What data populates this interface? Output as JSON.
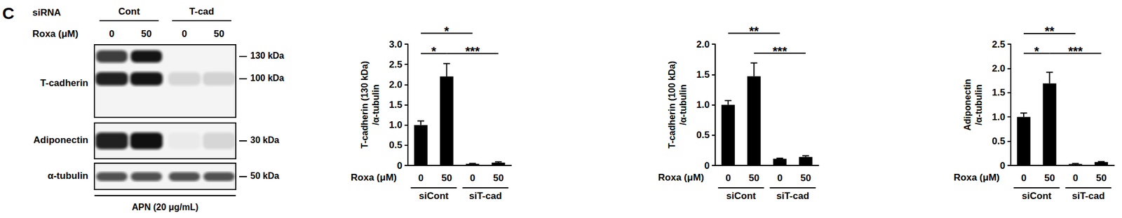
{
  "panel_label": "C",
  "blot": {
    "row_headers": [
      "siRNA",
      "Roxa (μM)"
    ],
    "sirna_groups": [
      "Cont",
      "T-cad"
    ],
    "roxa": [
      0,
      50,
      0,
      50
    ],
    "bands": [
      {
        "label": "T-cadherin",
        "markers": [
          "130 kDa",
          "100 kDa"
        ]
      },
      {
        "label": "Adiponectin",
        "markers": [
          "30 kDa"
        ]
      },
      {
        "label": "α-tubulin",
        "markers": [
          "50 kDa"
        ]
      }
    ],
    "treatment": "APN (20 μg/mL)"
  },
  "chart_data": [
    {
      "type": "bar",
      "y_label": "T-cadherin (130 kDa)\n/α-tubulin",
      "x_label": "Roxa (μM)",
      "categories": [
        "0",
        "50",
        "0",
        "50"
      ],
      "groups": [
        {
          "label": "siCont",
          "categories": [
            0,
            1
          ]
        },
        {
          "label": "siT-cad",
          "categories": [
            2,
            3
          ]
        }
      ],
      "values": [
        1.0,
        2.2,
        0.04,
        0.07
      ],
      "errors": [
        0.1,
        0.32,
        0.01,
        0.02
      ],
      "color": "#000000",
      "ylim": [
        0,
        3
      ],
      "yticks": [
        0,
        0.5,
        {
          "value": 1,
          "label": "1.0"
        },
        1.5,
        {
          "value": 2,
          "label": "2.0"
        },
        2.5,
        {
          "value": 3,
          "label": "3.0"
        }
      ],
      "grid": false,
      "significance": [
        {
          "from": 0,
          "to": 2,
          "y": 3.27,
          "label": "*"
        },
        {
          "from": 0,
          "to": 1,
          "y": 2.77,
          "label": "*"
        },
        {
          "from": 1,
          "to": 3,
          "y": 2.77,
          "label": "***"
        }
      ]
    },
    {
      "type": "bar",
      "y_label": "T-cadherin (100 kDa)\n/α-tubulin",
      "x_label": "Roxa (μM)",
      "categories": [
        "0",
        "50",
        "0",
        "50"
      ],
      "groups": [
        {
          "label": "siCont",
          "categories": [
            0,
            1
          ]
        },
        {
          "label": "siT-cad",
          "categories": [
            2,
            3
          ]
        }
      ],
      "values": [
        1.0,
        1.47,
        0.11,
        0.14
      ],
      "errors": [
        0.07,
        0.22,
        0.01,
        0.02
      ],
      "color": "#000000",
      "ylim": [
        0,
        2
      ],
      "yticks": [
        0,
        0.5,
        {
          "value": 1,
          "label": "1.0"
        },
        1.5,
        {
          "value": 2,
          "label": "2.0"
        }
      ],
      "grid": false,
      "significance": [
        {
          "from": 0,
          "to": 2,
          "y": 2.18,
          "label": "**"
        },
        {
          "from": 1,
          "to": 3,
          "y": 1.85,
          "label": "***"
        }
      ]
    },
    {
      "type": "bar",
      "y_label": "Adiponectin\n/α-tubulin",
      "x_label": "Roxa (μM)",
      "categories": [
        "0",
        "50",
        "0",
        "50"
      ],
      "groups": [
        {
          "label": "siCont",
          "categories": [
            0,
            1
          ]
        },
        {
          "label": "siT-cad",
          "categories": [
            2,
            3
          ]
        }
      ],
      "values": [
        1.0,
        1.69,
        0.03,
        0.07
      ],
      "errors": [
        0.08,
        0.23,
        0.01,
        0.01
      ],
      "color": "#000000",
      "ylim": [
        0,
        2.5
      ],
      "yticks": [
        0,
        0.5,
        {
          "value": 1,
          "label": "1.0"
        },
        1.5,
        {
          "value": 2,
          "label": "2.0"
        },
        2.5
      ],
      "grid": false,
      "significance": [
        {
          "from": 0,
          "to": 2,
          "y": 2.72,
          "label": "**"
        },
        {
          "from": 0,
          "to": 1,
          "y": 2.31,
          "label": "*"
        },
        {
          "from": 1,
          "to": 3,
          "y": 2.31,
          "label": "***"
        }
      ]
    }
  ]
}
